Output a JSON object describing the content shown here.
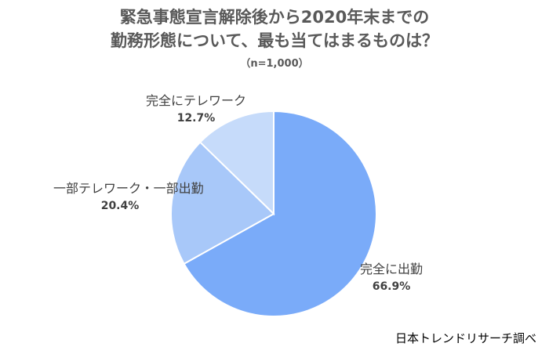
{
  "chart_data": {
    "type": "pie",
    "title_lines": [
      "緊急事態宣言解除後から2020年末までの",
      "勤務形態について、最も当てはまるものは？"
    ],
    "subtitle": "（n=1,000）",
    "slices": [
      {
        "label": "完全に出勤",
        "value": 66.9,
        "value_label": "66.9%",
        "color": "#7aabf9"
      },
      {
        "label": "一部テレワーク・一部出勤",
        "value": 20.4,
        "value_label": "20.4%",
        "color": "#a8c8f9"
      },
      {
        "label": "完全にテレワーク",
        "value": 12.7,
        "value_label": "12.7%",
        "color": "#c6dbfa"
      }
    ],
    "start": "12 o'clock, clockwise",
    "legend": "none (labels outside slices)"
  },
  "source_note": "日本トレンドリサーチ調べ"
}
